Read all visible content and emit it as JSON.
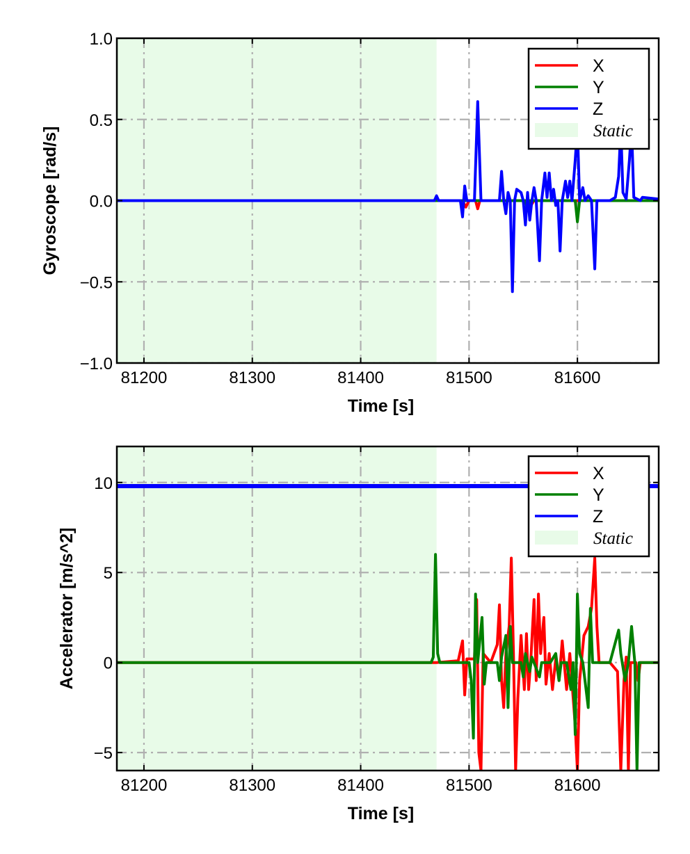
{
  "chart_data": [
    {
      "type": "line",
      "xlabel": "Time [s]",
      "ylabel": "Gyroscope [rad/s]",
      "xlim": [
        81175,
        81675
      ],
      "ylim": [
        -1.0,
        1.0
      ],
      "x_ticks": [
        81200,
        81300,
        81400,
        81500,
        81600
      ],
      "y_ticks": [
        -1.0,
        -0.5,
        0.0,
        0.5,
        1.0
      ],
      "y_tick_labels": [
        "−1.0",
        "−0.5",
        "0.0",
        "0.5",
        "1.0"
      ],
      "grid": true,
      "legend_position": "top-right",
      "static_region": {
        "label": "Static",
        "x": [
          81175,
          81470
        ],
        "color": "#e8fbe8"
      },
      "series": [
        {
          "name": "X",
          "color": "#ff0000",
          "points": [
            [
              81175,
              0.0
            ],
            [
              81470,
              0.0
            ],
            [
              81494,
              0.0
            ],
            [
              81497,
              -0.04
            ],
            [
              81500,
              0.0
            ],
            [
              81506,
              0.0
            ],
            [
              81508,
              -0.05
            ],
            [
              81510,
              0.0
            ],
            [
              81555,
              0.0
            ],
            [
              81557,
              -0.03
            ],
            [
              81560,
              0.0
            ],
            [
              81675,
              0.0
            ]
          ]
        },
        {
          "name": "Y",
          "color": "#008000",
          "points": [
            [
              81175,
              0.0
            ],
            [
              81470,
              0.0
            ],
            [
              81552,
              0.0
            ],
            [
              81554,
              -0.06
            ],
            [
              81556,
              0.0
            ],
            [
              81598,
              0.0
            ],
            [
              81600,
              -0.13
            ],
            [
              81602,
              0.0
            ],
            [
              81675,
              0.0
            ]
          ]
        },
        {
          "name": "Z",
          "color": "#0000ff",
          "points": [
            [
              81175,
              0.0
            ],
            [
              81468,
              0.0
            ],
            [
              81470,
              0.03
            ],
            [
              81472,
              0.0
            ],
            [
              81492,
              0.0
            ],
            [
              81494,
              -0.1
            ],
            [
              81496,
              0.09
            ],
            [
              81498,
              0.0
            ],
            [
              81505,
              0.0
            ],
            [
              81508,
              0.61
            ],
            [
              81511,
              0.0
            ],
            [
              81528,
              0.0
            ],
            [
              81530,
              0.18
            ],
            [
              81532,
              0.0
            ],
            [
              81534,
              -0.08
            ],
            [
              81536,
              0.05
            ],
            [
              81538,
              0.0
            ],
            [
              81540,
              -0.56
            ],
            [
              81542,
              0.0
            ],
            [
              81544,
              0.07
            ],
            [
              81548,
              0.05
            ],
            [
              81550,
              0.0
            ],
            [
              81552,
              -0.15
            ],
            [
              81554,
              0.05
            ],
            [
              81556,
              -0.12
            ],
            [
              81558,
              0.0
            ],
            [
              81560,
              0.08
            ],
            [
              81562,
              0.0
            ],
            [
              81565,
              -0.37
            ],
            [
              81567,
              0.0
            ],
            [
              81570,
              0.17
            ],
            [
              81572,
              0.02
            ],
            [
              81574,
              0.17
            ],
            [
              81576,
              0.0
            ],
            [
              81578,
              0.07
            ],
            [
              81580,
              -0.03
            ],
            [
              81582,
              0.0
            ],
            [
              81584,
              -0.31
            ],
            [
              81586,
              0.0
            ],
            [
              81589,
              0.12
            ],
            [
              81591,
              0.02
            ],
            [
              81593,
              0.12
            ],
            [
              81595,
              0.0
            ],
            [
              81598,
              0.25
            ],
            [
              81600,
              0.45
            ],
            [
              81602,
              0.0
            ],
            [
              81605,
              0.08
            ],
            [
              81607,
              0.0
            ],
            [
              81610,
              0.03
            ],
            [
              81613,
              0.0
            ],
            [
              81616,
              -0.42
            ],
            [
              81618,
              0.0
            ],
            [
              81625,
              0.0
            ],
            [
              81630,
              0.0
            ],
            [
              81635,
              0.02
            ],
            [
              81638,
              0.15
            ],
            [
              81640,
              0.45
            ],
            [
              81642,
              0.05
            ],
            [
              81645,
              0.01
            ],
            [
              81648,
              0.25
            ],
            [
              81650,
              0.45
            ],
            [
              81652,
              0.02
            ],
            [
              81658,
              0.0
            ],
            [
              81660,
              0.02
            ],
            [
              81675,
              0.01
            ]
          ]
        }
      ]
    },
    {
      "type": "line",
      "xlabel": "Time [s]",
      "ylabel": "Accelerator [m/s^2]",
      "xlim": [
        81175,
        81675
      ],
      "ylim": [
        -6.0,
        12.0
      ],
      "x_ticks": [
        81200,
        81300,
        81400,
        81500,
        81600
      ],
      "y_ticks": [
        -5,
        0,
        5,
        10
      ],
      "y_tick_labels": [
        "−5",
        "0",
        "5",
        "10"
      ],
      "grid": true,
      "legend_position": "top-right",
      "static_region": {
        "label": "Static",
        "x": [
          81175,
          81470
        ],
        "color": "#e8fbe8"
      },
      "series": [
        {
          "name": "X",
          "color": "#ff0000",
          "points": [
            [
              81175,
              0.0
            ],
            [
              81470,
              0.0
            ],
            [
              81490,
              0.1
            ],
            [
              81494,
              1.2
            ],
            [
              81496,
              -1.8
            ],
            [
              81498,
              0.2
            ],
            [
              81505,
              0.2
            ],
            [
              81507,
              3.5
            ],
            [
              81509,
              -5.0
            ],
            [
              81511,
              -6.0
            ],
            [
              81513,
              0.5
            ],
            [
              81520,
              0.0
            ],
            [
              81526,
              1.0
            ],
            [
              81528,
              3.2
            ],
            [
              81530,
              -1.0
            ],
            [
              81532,
              -2.5
            ],
            [
              81534,
              0.5
            ],
            [
              81537,
              2.0
            ],
            [
              81539,
              5.8
            ],
            [
              81541,
              0.5
            ],
            [
              81543,
              -6.0
            ],
            [
              81545,
              -2.0
            ],
            [
              81548,
              1.5
            ],
            [
              81551,
              -1.5
            ],
            [
              81553,
              1.6
            ],
            [
              81555,
              -1.5
            ],
            [
              81557,
              0.2
            ],
            [
              81560,
              3.5
            ],
            [
              81562,
              -1.0
            ],
            [
              81564,
              3.8
            ],
            [
              81566,
              0.5
            ],
            [
              81569,
              2.5
            ],
            [
              81571,
              -1.2
            ],
            [
              81574,
              0.5
            ],
            [
              81577,
              -1.5
            ],
            [
              81580,
              0.2
            ],
            [
              81583,
              -1.0
            ],
            [
              81586,
              1.2
            ],
            [
              81590,
              -1.5
            ],
            [
              81593,
              0.5
            ],
            [
              81598,
              -3.5
            ],
            [
              81600,
              -6.0
            ],
            [
              81602,
              -1.0
            ],
            [
              81606,
              1.5
            ],
            [
              81610,
              2.0
            ],
            [
              81613,
              3.0
            ],
            [
              81616,
              5.8
            ],
            [
              81618,
              2.0
            ],
            [
              81620,
              0.0
            ],
            [
              81630,
              0.0
            ],
            [
              81637,
              -0.5
            ],
            [
              81640,
              -6.0
            ],
            [
              81643,
              -1.0
            ],
            [
              81645,
              0.3
            ],
            [
              81647,
              -6.0
            ],
            [
              81649,
              0.0
            ],
            [
              81654,
              0.0
            ],
            [
              81656,
              -1.0
            ],
            [
              81658,
              0.0
            ],
            [
              81675,
              0.0
            ]
          ]
        },
        {
          "name": "Y",
          "color": "#008000",
          "points": [
            [
              81175,
              0.0
            ],
            [
              81465,
              0.0
            ],
            [
              81467,
              0.3
            ],
            [
              81469,
              6.0
            ],
            [
              81471,
              0.5
            ],
            [
              81473,
              0.0
            ],
            [
              81500,
              0.0
            ],
            [
              81502,
              -1.0
            ],
            [
              81504,
              -4.2
            ],
            [
              81506,
              3.8
            ],
            [
              81508,
              0.0
            ],
            [
              81512,
              2.5
            ],
            [
              81514,
              -1.2
            ],
            [
              81516,
              0.0
            ],
            [
              81526,
              0.0
            ],
            [
              81528,
              -1.0
            ],
            [
              81530,
              0.3
            ],
            [
              81534,
              1.5
            ],
            [
              81536,
              -2.5
            ],
            [
              81538,
              2.0
            ],
            [
              81540,
              0.0
            ],
            [
              81548,
              0.0
            ],
            [
              81550,
              -0.8
            ],
            [
              81552,
              0.5
            ],
            [
              81556,
              -0.5
            ],
            [
              81558,
              0.3
            ],
            [
              81565,
              -0.8
            ],
            [
              81567,
              0.0
            ],
            [
              81575,
              0.0
            ],
            [
              81580,
              0.5
            ],
            [
              81583,
              -1.0
            ],
            [
              81585,
              0.0
            ],
            [
              81590,
              0.0
            ],
            [
              81594,
              -1.5
            ],
            [
              81596,
              0.0
            ],
            [
              81598,
              -4.0
            ],
            [
              81600,
              3.8
            ],
            [
              81602,
              0.5
            ],
            [
              81605,
              0.0
            ],
            [
              81610,
              -2.5
            ],
            [
              81612,
              3.0
            ],
            [
              81614,
              0.0
            ],
            [
              81625,
              0.0
            ],
            [
              81630,
              0.0
            ],
            [
              81638,
              1.8
            ],
            [
              81640,
              0.5
            ],
            [
              81644,
              -1.0
            ],
            [
              81647,
              0.0
            ],
            [
              81650,
              2.0
            ],
            [
              81653,
              0.0
            ],
            [
              81655,
              -6.0
            ],
            [
              81657,
              0.0
            ],
            [
              81675,
              0.0
            ]
          ]
        },
        {
          "name": "Z",
          "color": "#0000ff",
          "points": [
            [
              81175,
              9.8
            ],
            [
              81675,
              9.8
            ]
          ]
        }
      ]
    }
  ]
}
